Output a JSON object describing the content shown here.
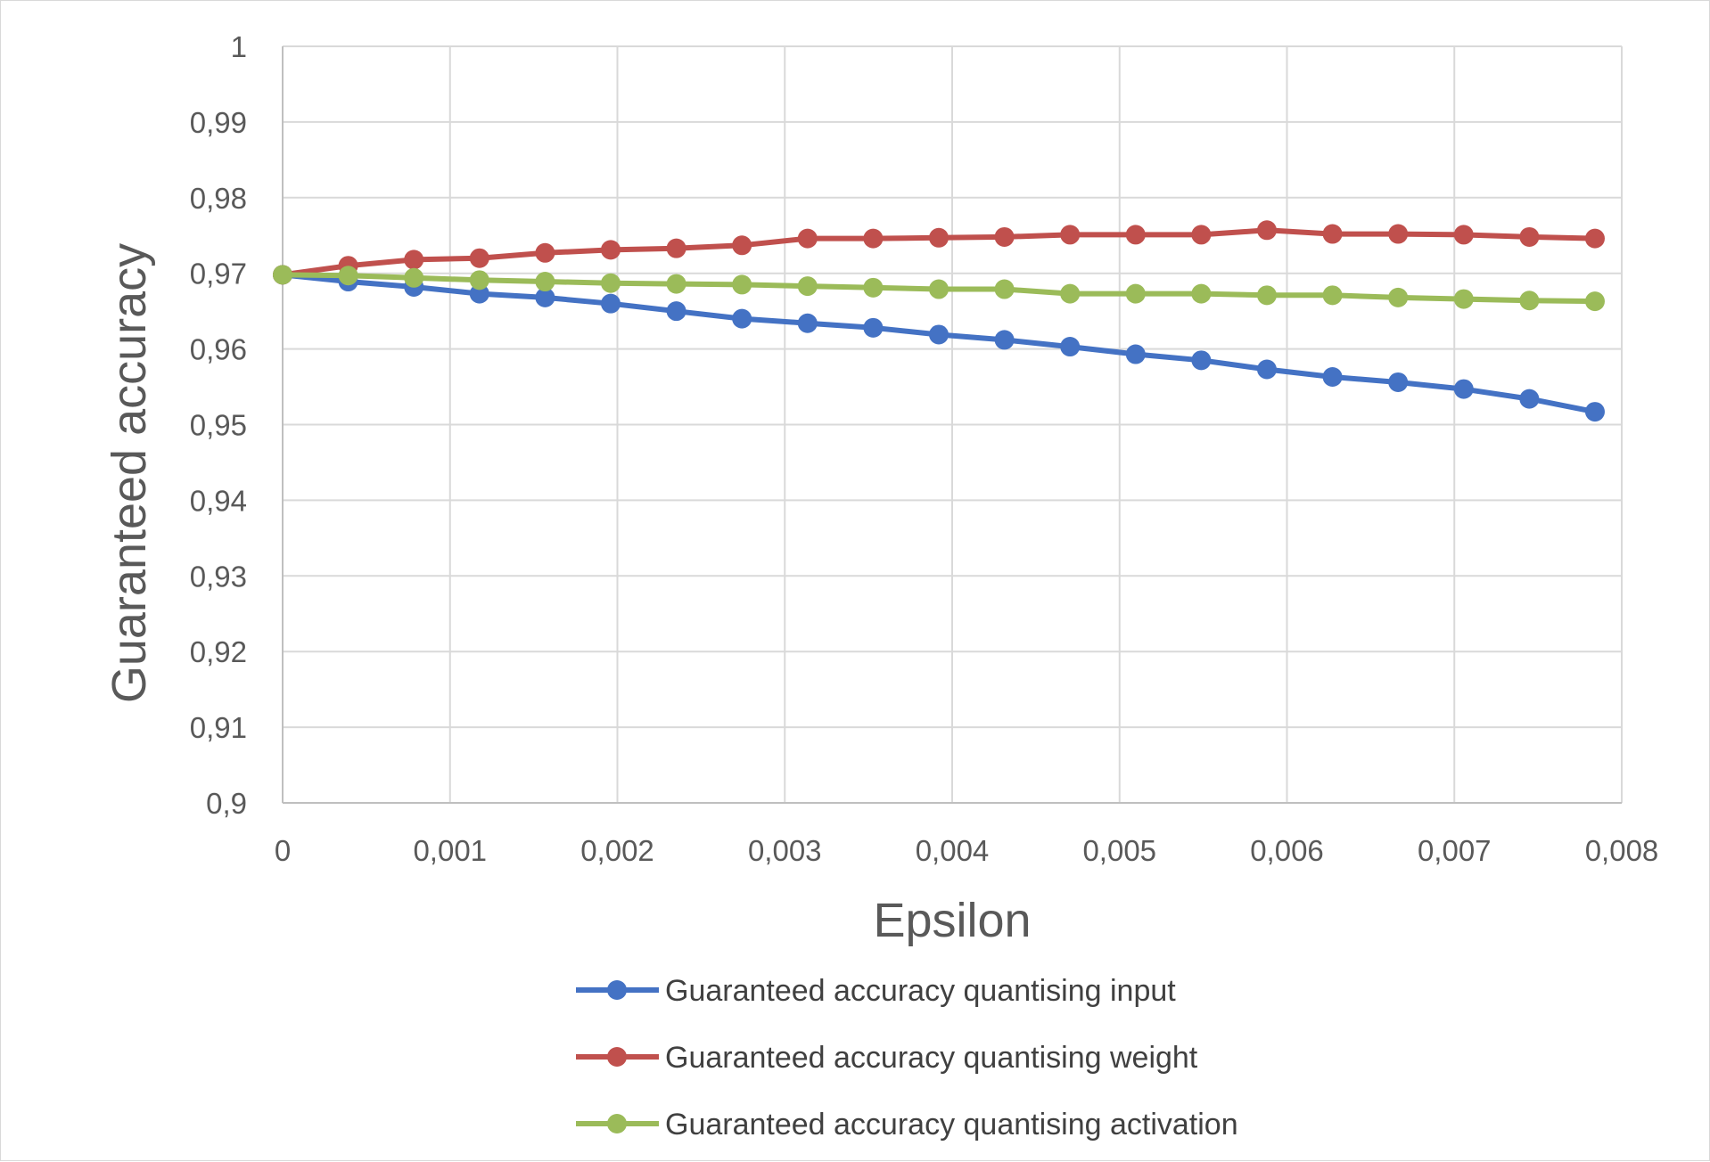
{
  "chart_data": {
    "type": "line",
    "title": "",
    "xlabel": "Epsilon",
    "ylabel": "Guaranteed accuracy",
    "xlim": [
      0,
      0.008
    ],
    "ylim": [
      0.9,
      1
    ],
    "x_ticks": [
      0,
      0.001,
      0.002,
      0.003,
      0.004,
      0.005,
      0.006,
      0.007,
      0.008
    ],
    "x_tick_labels": [
      "0",
      "0,001",
      "0,002",
      "0,003",
      "0,004",
      "0,005",
      "0,006",
      "0,007",
      "0,008"
    ],
    "y_ticks": [
      0.9,
      0.91,
      0.92,
      0.93,
      0.94,
      0.95,
      0.96,
      0.97,
      0.98,
      0.99,
      1
    ],
    "y_tick_labels": [
      "0,9",
      "0,91",
      "0,92",
      "0,93",
      "0,94",
      "0,95",
      "0,96",
      "0,97",
      "0,98",
      "0,99",
      "1"
    ],
    "grid": true,
    "legend_position": "bottom",
    "x": [
      0,
      0.000392,
      0.000784,
      0.001176,
      0.001568,
      0.00196,
      0.002352,
      0.002744,
      0.003136,
      0.003528,
      0.00392,
      0.004312,
      0.004704,
      0.005096,
      0.005488,
      0.00588,
      0.006272,
      0.006664,
      0.007056,
      0.007448,
      0.00784
    ],
    "series": [
      {
        "name": "Guaranteed accuracy quantising input",
        "color": "#4472C4",
        "values": [
          0.9698,
          0.9689,
          0.9682,
          0.9673,
          0.9668,
          0.966,
          0.965,
          0.964,
          0.9634,
          0.9628,
          0.9619,
          0.9612,
          0.9603,
          0.9593,
          0.9585,
          0.9573,
          0.9563,
          0.9556,
          0.9547,
          0.9534,
          0.9517
        ]
      },
      {
        "name": "Guaranteed accuracy quantising weight",
        "color": "#C0504D",
        "values": [
          0.9698,
          0.971,
          0.9718,
          0.972,
          0.9727,
          0.9731,
          0.9733,
          0.9737,
          0.9746,
          0.9746,
          0.9747,
          0.9748,
          0.9751,
          0.9751,
          0.9751,
          0.9757,
          0.9752,
          0.9752,
          0.9751,
          0.9748,
          0.9746
        ]
      },
      {
        "name": "Guaranteed accuracy quantising activation",
        "color": "#9BBB59",
        "values": [
          0.9698,
          0.9697,
          0.9694,
          0.9691,
          0.9689,
          0.9687,
          0.9686,
          0.9685,
          0.9683,
          0.9681,
          0.9679,
          0.9679,
          0.9673,
          0.9673,
          0.9673,
          0.9671,
          0.9671,
          0.9668,
          0.9666,
          0.9664,
          0.9663
        ]
      }
    ]
  }
}
